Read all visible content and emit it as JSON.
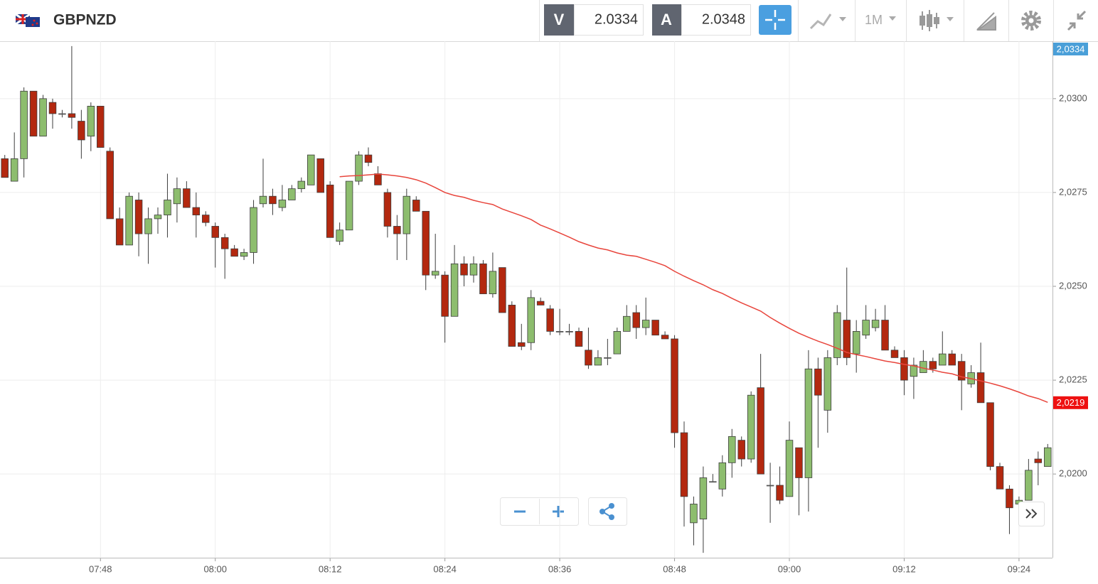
{
  "ui": {
    "symbol": "GBPNZD",
    "sell_label": "V",
    "bid": 2.0334,
    "buy_label": "A",
    "ask": 2.0348,
    "timeframe": "1M"
  },
  "chart_data": {
    "type": "candlestick",
    "categories": [
      null,
      null,
      null,
      null,
      null,
      null,
      null,
      null,
      null,
      null,
      "07:48",
      null,
      null,
      null,
      null,
      null,
      null,
      null,
      null,
      null,
      null,
      null,
      "08:00",
      null,
      null,
      null,
      null,
      null,
      null,
      null,
      null,
      null,
      null,
      null,
      "08:12",
      null,
      null,
      null,
      null,
      null,
      null,
      null,
      null,
      null,
      null,
      null,
      "08:24",
      null,
      null,
      null,
      null,
      null,
      null,
      null,
      null,
      null,
      null,
      null,
      "08:36",
      null,
      null,
      null,
      null,
      null,
      null,
      null,
      null,
      null,
      null,
      null,
      "08:48",
      null,
      null,
      null,
      null,
      null,
      null,
      null,
      null,
      null,
      null,
      null,
      "09:00",
      null,
      null,
      null,
      null,
      null,
      null,
      null,
      null,
      null,
      null,
      null,
      "09:12",
      null,
      null,
      null,
      null,
      null,
      null,
      null,
      null,
      null,
      null,
      null,
      "09:24",
      null,
      null,
      null
    ],
    "open": [
      2.0284,
      2.0278,
      2.0284,
      2.0302,
      2.029,
      2.0299,
      2.0296,
      2.0296,
      2.0294,
      2.029,
      2.0298,
      2.0286,
      2.0268,
      2.0261,
      2.0273,
      2.0264,
      2.0268,
      2.0269,
      2.0272,
      2.0276,
      2.0271,
      2.0269,
      2.0266,
      2.0263,
      2.026,
      2.0258,
      2.0259,
      2.0272,
      2.0274,
      2.0271,
      2.0273,
      2.0276,
      2.0277,
      2.0284,
      2.0277,
      2.0262,
      2.0265,
      2.0278,
      2.0285,
      2.028,
      2.0275,
      2.0266,
      2.0264,
      2.0273,
      2.027,
      2.0253,
      2.0253,
      2.0242,
      2.0256,
      2.0253,
      2.0256,
      2.0248,
      2.0255,
      2.0245,
      2.0235,
      2.0235,
      2.0246,
      2.0244,
      2.0238,
      2.0238,
      2.0238,
      2.0233,
      2.0229,
      2.0231,
      2.0232,
      2.0238,
      2.0243,
      2.0239,
      2.0241,
      2.0237,
      2.0236,
      2.0211,
      2.0187,
      2.0188,
      2.0198,
      2.0196,
      2.0203,
      2.0209,
      2.0204,
      2.0223,
      2.0197,
      2.0197,
      2.0194,
      2.0207,
      2.0199,
      2.0228,
      2.0217,
      2.0231,
      2.0241,
      2.0232,
      2.0237,
      2.0239,
      2.0241,
      2.0233,
      2.0231,
      2.0226,
      2.0227,
      2.023,
      2.0229,
      2.0232,
      2.023,
      2.0224,
      2.0227,
      2.0219,
      2.0202,
      2.0196,
      2.0192,
      2.0193,
      2.0204,
      2.0202
    ],
    "high": [
      2.0285,
      2.0291,
      2.0303,
      2.0302,
      2.0301,
      2.03,
      2.0297,
      2.0314,
      2.0297,
      2.0299,
      2.0298,
      2.0287,
      2.0271,
      2.0275,
      2.0275,
      2.0271,
      2.0271,
      2.028,
      2.0279,
      2.0278,
      2.0275,
      2.027,
      2.0267,
      2.0264,
      2.0261,
      2.026,
      2.0273,
      2.0284,
      2.0276,
      2.0277,
      2.0277,
      2.0279,
      2.0285,
      2.0284,
      2.0278,
      2.0267,
      2.0278,
      2.0286,
      2.0287,
      2.0282,
      2.0276,
      2.0269,
      2.0276,
      2.0274,
      2.027,
      2.0264,
      2.0254,
      2.0261,
      2.0258,
      2.0258,
      2.0257,
      2.0259,
      2.0255,
      2.0246,
      2.024,
      2.0249,
      2.0247,
      2.0245,
      2.0244,
      2.024,
      2.0239,
      2.0239,
      2.0233,
      2.0236,
      2.0239,
      2.0245,
      2.0245,
      2.0247,
      2.0241,
      2.0238,
      2.0237,
      2.0214,
      2.0194,
      2.0202,
      2.02,
      2.0205,
      2.0212,
      2.021,
      2.0222,
      2.0232,
      2.0203,
      2.0202,
      2.0214,
      2.0207,
      2.0233,
      2.0231,
      2.0233,
      2.0245,
      2.0255,
      2.0241,
      2.0245,
      2.0244,
      2.0245,
      2.0234,
      2.0233,
      2.0231,
      2.0233,
      2.0231,
      2.0238,
      2.0233,
      2.0232,
      2.0229,
      2.0235,
      2.0219,
      2.0203,
      2.0197,
      2.0194,
      2.0204,
      2.0206,
      2.0208
    ],
    "low": [
      2.0279,
      2.0278,
      2.0279,
      2.029,
      2.029,
      2.0292,
      2.0295,
      2.0292,
      2.0284,
      2.0286,
      2.0287,
      2.0268,
      2.0261,
      2.0261,
      2.0258,
      2.0256,
      2.0264,
      2.0263,
      2.0267,
      2.0271,
      2.0263,
      2.0266,
      2.0255,
      2.0252,
      2.0258,
      2.0257,
      2.0256,
      2.0271,
      2.0269,
      2.027,
      2.0273,
      2.0275,
      2.0277,
      2.0275,
      2.0263,
      2.0261,
      2.0265,
      2.0277,
      2.0282,
      2.0277,
      2.0263,
      2.0257,
      2.0257,
      2.027,
      2.0249,
      2.0252,
      2.0235,
      2.0242,
      2.025,
      2.0251,
      2.0248,
      2.0247,
      2.0243,
      2.0234,
      2.0233,
      2.0233,
      2.0245,
      2.0237,
      2.0237,
      2.0237,
      2.0234,
      2.0228,
      2.0229,
      2.0229,
      2.0232,
      2.0238,
      2.0236,
      2.0237,
      2.0237,
      2.0236,
      2.0207,
      2.0186,
      2.0181,
      2.0179,
      2.0198,
      2.0194,
      2.0199,
      2.0202,
      2.0203,
      2.02,
      2.0187,
      2.0192,
      2.0194,
      2.0189,
      2.019,
      2.0207,
      2.0211,
      2.0229,
      2.0229,
      2.0227,
      2.0236,
      2.0238,
      2.0233,
      2.0231,
      2.0221,
      2.022,
      2.0227,
      2.0227,
      2.0229,
      2.0229,
      2.0217,
      2.0223,
      2.0219,
      2.0201,
      2.0196,
      2.0184,
      2.0191,
      2.0193,
      2.0197,
      2.0202
    ],
    "close": [
      2.0279,
      2.0284,
      2.0302,
      2.029,
      2.03,
      2.0296,
      2.0296,
      2.0295,
      2.0289,
      2.0298,
      2.0287,
      2.0268,
      2.0261,
      2.0274,
      2.0264,
      2.0268,
      2.0269,
      2.0273,
      2.0276,
      2.0271,
      2.0269,
      2.0267,
      2.0263,
      2.026,
      2.0258,
      2.0259,
      2.0271,
      2.0274,
      2.0272,
      2.0273,
      2.0276,
      2.0278,
      2.0285,
      2.0275,
      2.0263,
      2.0265,
      2.0278,
      2.0285,
      2.0283,
      2.0277,
      2.0266,
      2.0264,
      2.0274,
      2.027,
      2.0253,
      2.0254,
      2.0242,
      2.0256,
      2.0253,
      2.0256,
      2.0248,
      2.0254,
      2.0243,
      2.0234,
      2.0234,
      2.0247,
      2.0245,
      2.0238,
      2.0238,
      2.0238,
      2.0234,
      2.0229,
      2.0231,
      2.0231,
      2.0238,
      2.0242,
      2.0239,
      2.0241,
      2.0237,
      2.0236,
      2.0211,
      2.0194,
      2.0192,
      2.0199,
      2.0198,
      2.0203,
      2.021,
      2.0204,
      2.0221,
      2.02,
      2.0197,
      2.0193,
      2.0209,
      2.0199,
      2.0228,
      2.0221,
      2.0231,
      2.0243,
      2.0231,
      2.0238,
      2.0241,
      2.0241,
      2.0233,
      2.0231,
      2.0225,
      2.0229,
      2.023,
      2.0228,
      2.0232,
      2.0229,
      2.0225,
      2.0227,
      2.0219,
      2.0202,
      2.0196,
      2.0191,
      2.0193,
      2.0201,
      2.0203,
      2.0207
    ],
    "up_color": "#8dbd6e",
    "down_color": "#b3280f",
    "doji_color": "#555555",
    "outline_color": "#3d3d3d",
    "ma": {
      "color": "#e8453c",
      "values": [
        null,
        null,
        null,
        null,
        null,
        null,
        null,
        null,
        null,
        null,
        null,
        null,
        null,
        null,
        null,
        null,
        null,
        null,
        null,
        null,
        null,
        null,
        null,
        null,
        null,
        null,
        null,
        null,
        null,
        null,
        null,
        null,
        null,
        null,
        null,
        2.02792,
        2.02794,
        2.02795,
        2.02797,
        2.02799,
        2.02797,
        2.02794,
        2.0279,
        2.02784,
        2.02775,
        2.02763,
        2.0275,
        2.02742,
        2.02737,
        2.02729,
        2.02723,
        2.02718,
        2.02706,
        2.02697,
        2.02688,
        2.02678,
        2.02663,
        2.02653,
        2.02642,
        2.02631,
        2.02619,
        2.0261,
        2.02602,
        2.02597,
        2.02589,
        2.02583,
        2.0258,
        2.02572,
        2.02564,
        2.02555,
        2.0254,
        2.02527,
        2.02515,
        2.02504,
        2.02491,
        2.02481,
        2.02468,
        2.02456,
        2.02445,
        2.02434,
        2.02417,
        2.02402,
        2.02388,
        2.02375,
        2.02364,
        2.02354,
        2.02345,
        2.02335,
        2.02324,
        2.02318,
        2.02313,
        2.02307,
        2.02301,
        2.02297,
        2.02292,
        2.02288,
        2.02282,
        2.02277,
        2.02271,
        2.02267,
        2.02259,
        2.02254,
        2.02248,
        2.02242,
        2.02235,
        2.02227,
        2.02218,
        2.02208,
        2.02201,
        2.02191
      ]
    },
    "ma_label": {
      "value": 2.0219,
      "label": "2,0219"
    },
    "price_tag": {
      "value": 2.0334,
      "label": "2,0334"
    },
    "price_tag_color": "#4a9fd8",
    "ylim": [
      2.01777,
      2.03153
    ],
    "yticks": [
      {
        "value": 2.02,
        "label": "2,0200"
      },
      {
        "value": 2.0225,
        "label": "2,0225"
      },
      {
        "value": 2.025,
        "label": "2,0250"
      },
      {
        "value": 2.0275,
        "label": "2,0275"
      },
      {
        "value": 2.03,
        "label": "2,0300"
      }
    ],
    "grid": true
  }
}
